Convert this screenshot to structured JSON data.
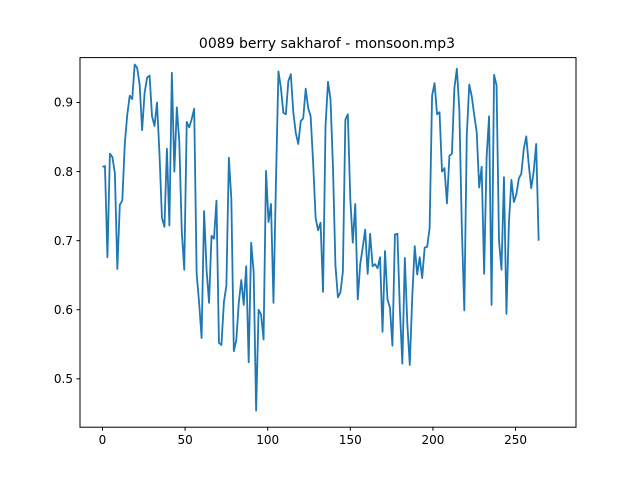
{
  "chart_data": {
    "type": "line",
    "title": "0089 berry sakharof - monsoon.mp3",
    "xlabel": "",
    "ylabel": "",
    "xlim": [
      -13.6,
      286.6
    ],
    "ylim": [
      0.43,
      0.965
    ],
    "x_ticks": [
      0,
      50,
      100,
      150,
      200,
      250
    ],
    "y_ticks": [
      0.5,
      0.6,
      0.7,
      0.8,
      0.9
    ],
    "y_tick_labels": [
      "0.5",
      "0.6",
      "0.7",
      "0.8",
      "0.9"
    ],
    "grid": false,
    "line_color": "#1f77b4",
    "series": [
      {
        "values": [
          0.807,
          0.808,
          0.676,
          0.826,
          0.821,
          0.798,
          0.659,
          0.752,
          0.758,
          0.84,
          0.882,
          0.91,
          0.905,
          0.955,
          0.95,
          0.926,
          0.86,
          0.914,
          0.936,
          0.939,
          0.88,
          0.866,
          0.9,
          0.826,
          0.733,
          0.72,
          0.833,
          0.722,
          0.943,
          0.8,
          0.893,
          0.843,
          0.713,
          0.658,
          0.872,
          0.864,
          0.876,
          0.891,
          0.652,
          0.61,
          0.559,
          0.743,
          0.658,
          0.61,
          0.707,
          0.703,
          0.758,
          0.552,
          0.549,
          0.611,
          0.635,
          0.82,
          0.76,
          0.54,
          0.556,
          0.61,
          0.643,
          0.607,
          0.663,
          0.524,
          0.697,
          0.655,
          0.454,
          0.6,
          0.593,
          0.557,
          0.801,
          0.727,
          0.753,
          0.61,
          0.785,
          0.945,
          0.921,
          0.885,
          0.883,
          0.931,
          0.941,
          0.886,
          0.856,
          0.84,
          0.873,
          0.877,
          0.92,
          0.892,
          0.88,
          0.813,
          0.733,
          0.715,
          0.726,
          0.626,
          0.866,
          0.93,
          0.905,
          0.807,
          0.664,
          0.618,
          0.625,
          0.655,
          0.875,
          0.883,
          0.76,
          0.697,
          0.753,
          0.615,
          0.666,
          0.69,
          0.716,
          0.652,
          0.71,
          0.663,
          0.666,
          0.66,
          0.676,
          0.568,
          0.685,
          0.615,
          0.603,
          0.548,
          0.709,
          0.71,
          0.6,
          0.522,
          0.675,
          0.58,
          0.52,
          0.619,
          0.692,
          0.651,
          0.676,
          0.646,
          0.69,
          0.691,
          0.718,
          0.91,
          0.928,
          0.883,
          0.886,
          0.8,
          0.805,
          0.754,
          0.823,
          0.826,
          0.921,
          0.949,
          0.889,
          0.718,
          0.599,
          0.853,
          0.926,
          0.909,
          0.882,
          0.857,
          0.777,
          0.807,
          0.652,
          0.821,
          0.88,
          0.607,
          0.94,
          0.925,
          0.7,
          0.658,
          0.792,
          0.594,
          0.726,
          0.788,
          0.756,
          0.767,
          0.79,
          0.797,
          0.833,
          0.851,
          0.81,
          0.776,
          0.8,
          0.84,
          0.7
        ]
      }
    ]
  }
}
